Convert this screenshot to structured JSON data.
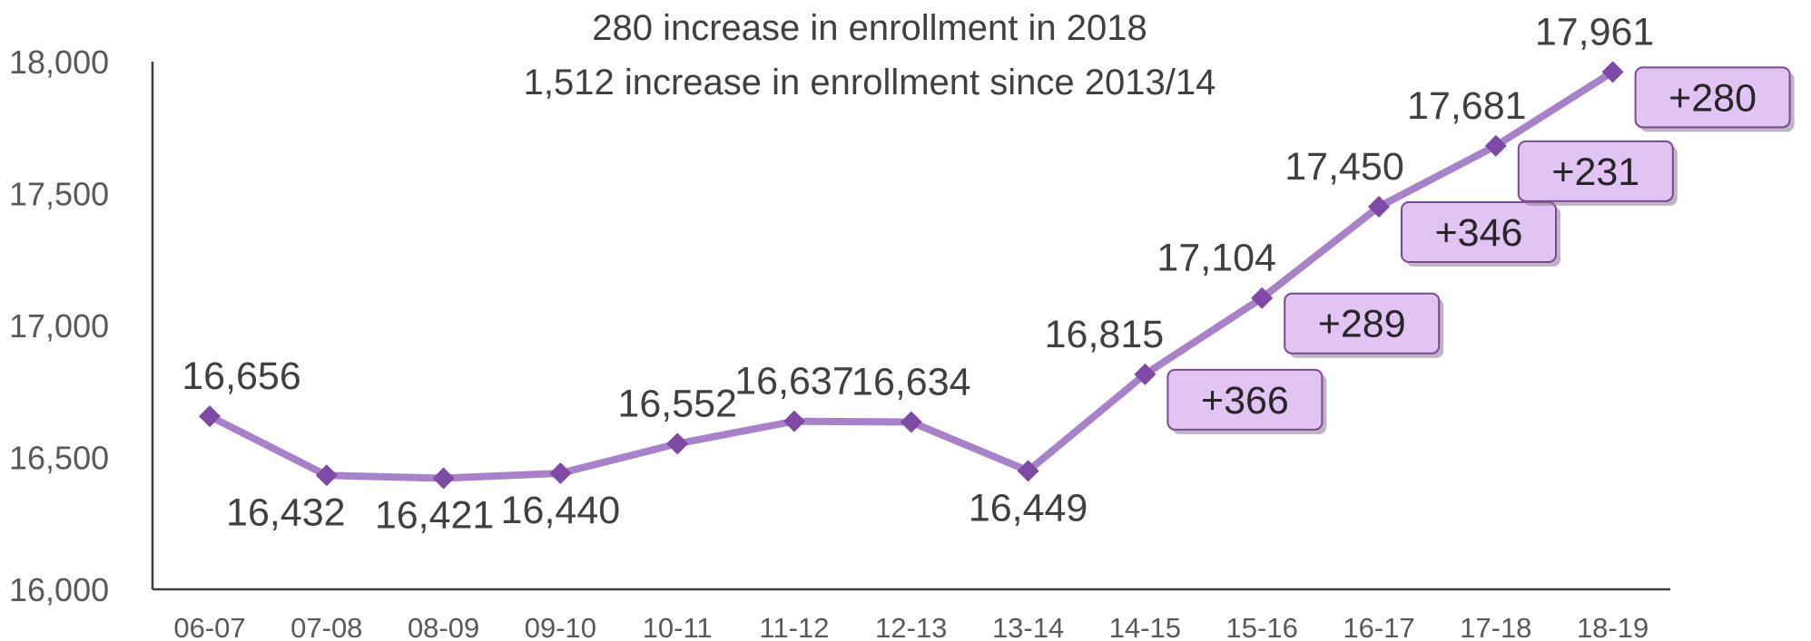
{
  "title_lines": [
    "280 increase in enrollment in 2018",
    "1,512 increase in enrollment since 2013/14"
  ],
  "chart_data": {
    "type": "line",
    "title": "280 increase in enrollment in 2018 / 1,512 increase in enrollment since 2013/14",
    "xlabel": "",
    "ylabel": "",
    "categories": [
      "06-07",
      "07-08",
      "08-09",
      "09-10",
      "10-11",
      "11-12",
      "12-13",
      "13-14",
      "14-15",
      "15-16",
      "16-17",
      "17-18",
      "18-19"
    ],
    "series": [
      {
        "values": [
          16656,
          16432,
          16421,
          16440,
          16552,
          16637,
          16634,
          16449,
          16815,
          17104,
          17450,
          17681,
          17961
        ]
      }
    ],
    "data_labels": [
      "16,656",
      "16,432",
      "16,421",
      "16,440",
      "16,552",
      "16,637",
      "16,634",
      "16,449",
      "16,815",
      "17,104",
      "17,450",
      "17,681",
      "17,961"
    ],
    "ylim": [
      16000,
      18000
    ],
    "yticks": [
      16000,
      16500,
      17000,
      17500,
      18000
    ],
    "ytick_labels": [
      "16,000",
      "16,500",
      "17,000",
      "17,500",
      "18,000"
    ],
    "annotations": [
      {
        "category": "14-15",
        "text": "+366"
      },
      {
        "category": "15-16",
        "text": "+289"
      },
      {
        "category": "16-17",
        "text": "+346"
      },
      {
        "category": "17-18",
        "text": "+231"
      },
      {
        "category": "18-19",
        "text": "+280"
      }
    ],
    "grid": false,
    "legend": "none",
    "colors": {
      "line": "#a882c8",
      "marker": "#7f4aa6",
      "annotation_fill": "#e1c4f3",
      "annotation_border": "#7a4a8e",
      "axis": "#404040",
      "text": "#404040"
    }
  }
}
